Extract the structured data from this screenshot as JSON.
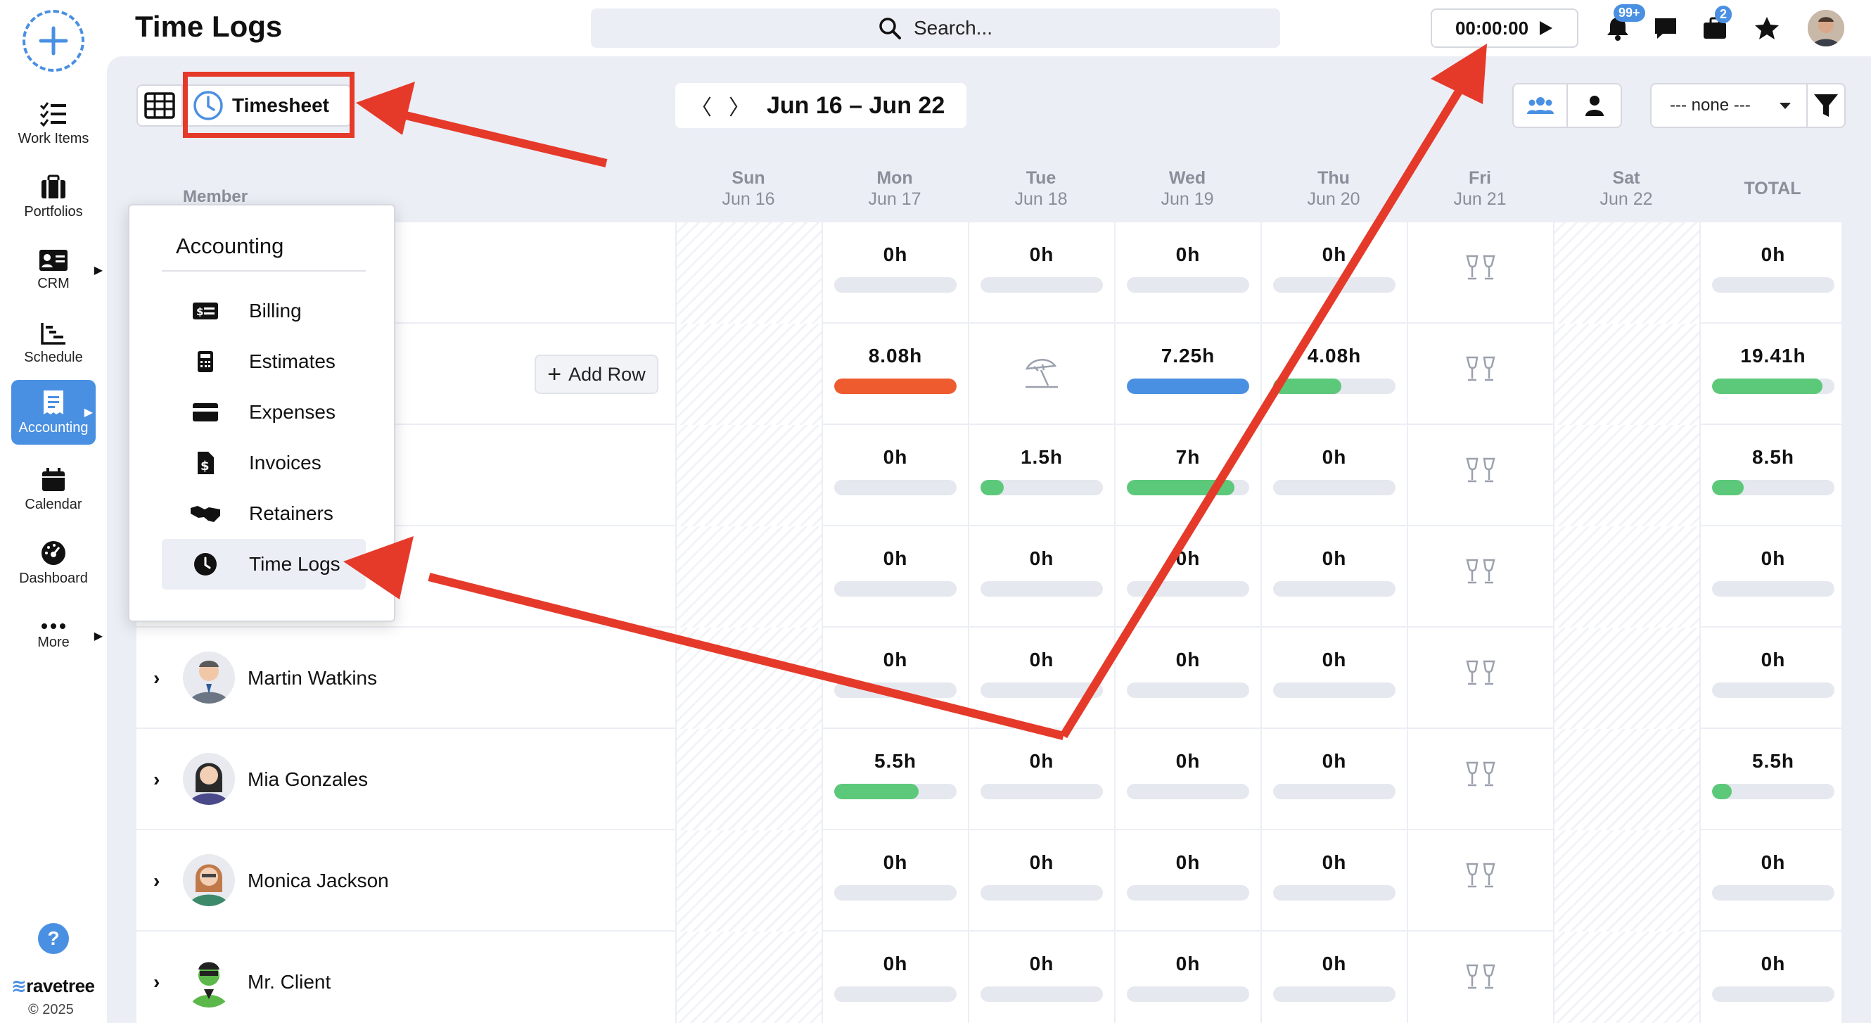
{
  "header": {
    "title": "Time Logs",
    "search_placeholder": "Search...",
    "timer": "00:00:00",
    "notifications_badge": "99+",
    "inbox_badge": "2"
  },
  "sidebar": {
    "items": [
      {
        "label": "Work Items",
        "icon": "checklist-icon"
      },
      {
        "label": "Portfolios",
        "icon": "briefcase-icon"
      },
      {
        "label": "CRM",
        "icon": "contact-card-icon"
      },
      {
        "label": "Schedule",
        "icon": "gantt-icon"
      },
      {
        "label": "Accounting",
        "icon": "receipt-icon",
        "active": true
      },
      {
        "label": "Calendar",
        "icon": "calendar-icon"
      },
      {
        "label": "Dashboard",
        "icon": "gauge-icon"
      },
      {
        "label": "More",
        "icon": "dots-icon"
      }
    ],
    "help": "?",
    "brand": "ravetree",
    "copyright": "© 2025"
  },
  "toolbar": {
    "view_label": "Timesheet",
    "week_range": "Jun 16 – Jun 22",
    "group_filter": "--- none ---"
  },
  "table": {
    "member_header": "Member",
    "total_header": "TOTAL",
    "add_row_label": "Add Row",
    "days": [
      {
        "name": "Sun",
        "date": "Jun 16"
      },
      {
        "name": "Mon",
        "date": "Jun 17"
      },
      {
        "name": "Tue",
        "date": "Jun 18"
      },
      {
        "name": "Wed",
        "date": "Jun 19"
      },
      {
        "name": "Thu",
        "date": "Jun 20"
      },
      {
        "name": "Fri",
        "date": "Jun 21"
      },
      {
        "name": "Sat",
        "date": "Jun 22"
      }
    ],
    "rows": [
      {
        "name": "",
        "hours": [
          "",
          "0h",
          "0h",
          "0h",
          "0h",
          "holiday",
          ""
        ],
        "total": "0h",
        "fills": [
          0,
          0,
          0,
          0,
          0,
          0,
          0
        ],
        "total_fill": 0
      },
      {
        "name": "",
        "hours": [
          "",
          "8.08h",
          "vacation",
          "7.25h",
          "4.08h",
          "holiday",
          ""
        ],
        "total": "19.41h",
        "fills": [
          0,
          1.0,
          0,
          1.0,
          0.56,
          0,
          0
        ],
        "total_fill": 0.9
      },
      {
        "name": "",
        "hours": [
          "",
          "0h",
          "1.5h",
          "7h",
          "0h",
          "holiday",
          ""
        ],
        "total": "8.5h",
        "fills": [
          0,
          0,
          0.19,
          0.88,
          0,
          0,
          0
        ],
        "total_fill": 0.26
      },
      {
        "name": "",
        "hours": [
          "",
          "0h",
          "0h",
          "0h",
          "0h",
          "holiday",
          ""
        ],
        "total": "0h",
        "fills": [
          0,
          0,
          0,
          0,
          0,
          0,
          0
        ],
        "total_fill": 0
      },
      {
        "name": "Martin Watkins",
        "hours": [
          "",
          "0h",
          "0h",
          "0h",
          "0h",
          "holiday",
          ""
        ],
        "total": "0h",
        "fills": [
          0,
          0,
          0,
          0,
          0,
          0,
          0
        ],
        "total_fill": 0
      },
      {
        "name": "Mia Gonzales",
        "hours": [
          "",
          "5.5h",
          "0h",
          "0h",
          "0h",
          "holiday",
          ""
        ],
        "total": "5.5h",
        "fills": [
          0,
          0.69,
          0,
          0,
          0,
          0,
          0
        ],
        "total_fill": 0.16
      },
      {
        "name": "Monica Jackson",
        "hours": [
          "",
          "0h",
          "0h",
          "0h",
          "0h",
          "holiday",
          ""
        ],
        "total": "0h",
        "fills": [
          0,
          0,
          0,
          0,
          0,
          0,
          0
        ],
        "total_fill": 0
      },
      {
        "name": "Mr. Client",
        "hours": [
          "",
          "0h",
          "0h",
          "0h",
          "0h",
          "holiday",
          ""
        ],
        "total": "0h",
        "fills": [
          0,
          0,
          0,
          0,
          0,
          0,
          0
        ],
        "total_fill": 0
      }
    ]
  },
  "accounting_menu": {
    "title": "Accounting",
    "items": [
      {
        "label": "Billing",
        "icon": "billing-icon"
      },
      {
        "label": "Estimates",
        "icon": "calculator-icon"
      },
      {
        "label": "Expenses",
        "icon": "credit-card-icon"
      },
      {
        "label": "Invoices",
        "icon": "invoice-icon"
      },
      {
        "label": "Retainers",
        "icon": "handshake-icon"
      },
      {
        "label": "Time Logs",
        "icon": "clock-icon",
        "selected": true
      }
    ]
  },
  "colors": {
    "accent": "#4a90e2",
    "annotation_red": "#e53a2a",
    "bar_over": "#ee5b2e",
    "bar_blue": "#4a90e2",
    "bar_green": "#5cc97a"
  }
}
